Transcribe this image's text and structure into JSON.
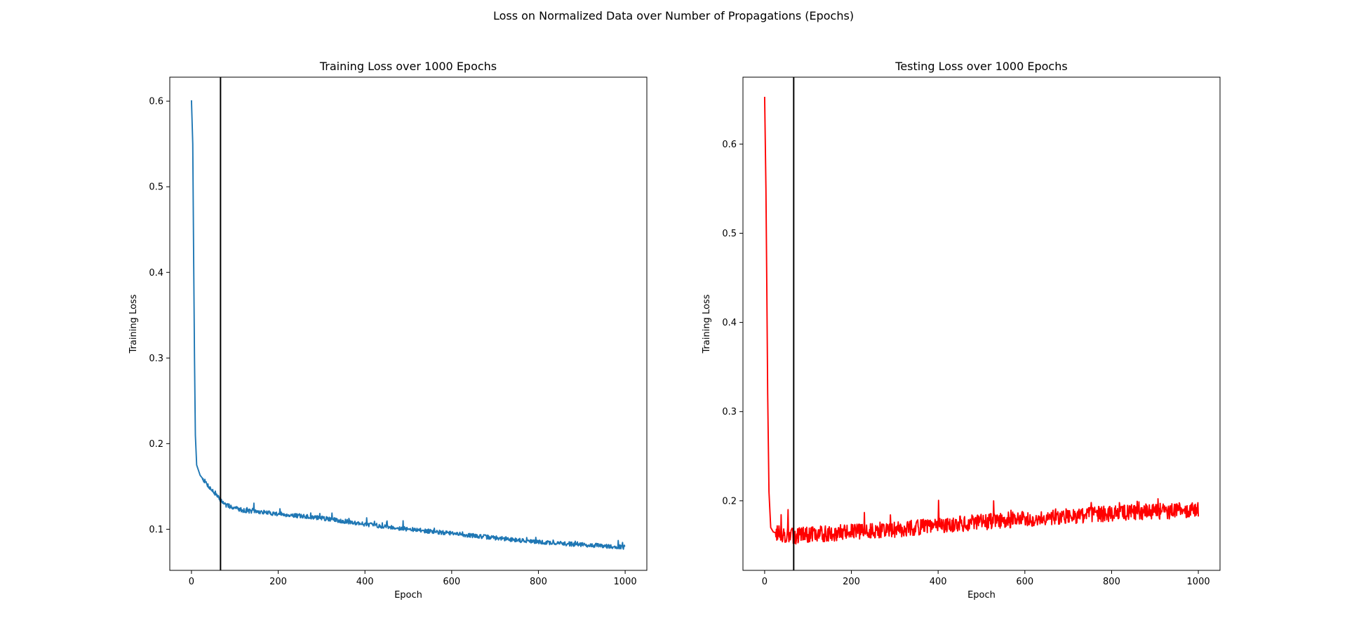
{
  "figure": {
    "suptitle": "Loss on Normalized Data over Number of Propagations (Epochs)"
  },
  "chart_data": [
    {
      "type": "line",
      "title": "Training Loss over 1000 Epochs",
      "xlabel": "Epoch",
      "ylabel": "Training Loss",
      "xlim": [
        -50,
        1050
      ],
      "ylim": [
        0.052,
        0.628
      ],
      "xticks": [
        0,
        200,
        400,
        600,
        800,
        1000
      ],
      "yticks": [
        0.1,
        0.2,
        0.3,
        0.4,
        0.5,
        0.6
      ],
      "vline": 67,
      "vline_color": "#000000",
      "grid": false,
      "series": [
        {
          "color": "#1f77b4",
          "noise": 0.0025,
          "spike_rate": 0.03,
          "points": [
            [
              0,
              0.601
            ],
            [
              3,
              0.55
            ],
            [
              5,
              0.42
            ],
            [
              7,
              0.3
            ],
            [
              9,
              0.21
            ],
            [
              12,
              0.175
            ],
            [
              20,
              0.163
            ],
            [
              40,
              0.15
            ],
            [
              60,
              0.138
            ],
            [
              80,
              0.128
            ],
            [
              120,
              0.122
            ],
            [
              200,
              0.118
            ],
            [
              300,
              0.113
            ],
            [
              400,
              0.106
            ],
            [
              500,
              0.1
            ],
            [
              600,
              0.095
            ],
            [
              700,
              0.09
            ],
            [
              800,
              0.085
            ],
            [
              900,
              0.082
            ],
            [
              1000,
              0.079
            ]
          ]
        }
      ]
    },
    {
      "type": "line",
      "title": "Testing Loss over 1000 Epochs",
      "xlabel": "Epoch",
      "ylabel": "Training Loss",
      "xlim": [
        -50,
        1050
      ],
      "ylim": [
        0.122,
        0.675
      ],
      "xticks": [
        0,
        200,
        400,
        600,
        800,
        1000
      ],
      "yticks": [
        0.2,
        0.3,
        0.4,
        0.5,
        0.6
      ],
      "vline": 67,
      "vline_color": "#000000",
      "grid": false,
      "series": [
        {
          "color": "#ff0000",
          "noise": 0.009,
          "spike_rate": 0.02,
          "points": [
            [
              0,
              0.653
            ],
            [
              3,
              0.55
            ],
            [
              5,
              0.44
            ],
            [
              7,
              0.32
            ],
            [
              10,
              0.21
            ],
            [
              14,
              0.17
            ],
            [
              20,
              0.165
            ],
            [
              60,
              0.16
            ],
            [
              100,
              0.162
            ],
            [
              200,
              0.165
            ],
            [
              300,
              0.168
            ],
            [
              400,
              0.172
            ],
            [
              500,
              0.176
            ],
            [
              600,
              0.18
            ],
            [
              700,
              0.183
            ],
            [
              800,
              0.186
            ],
            [
              900,
              0.188
            ],
            [
              1000,
              0.19
            ]
          ]
        }
      ]
    }
  ]
}
